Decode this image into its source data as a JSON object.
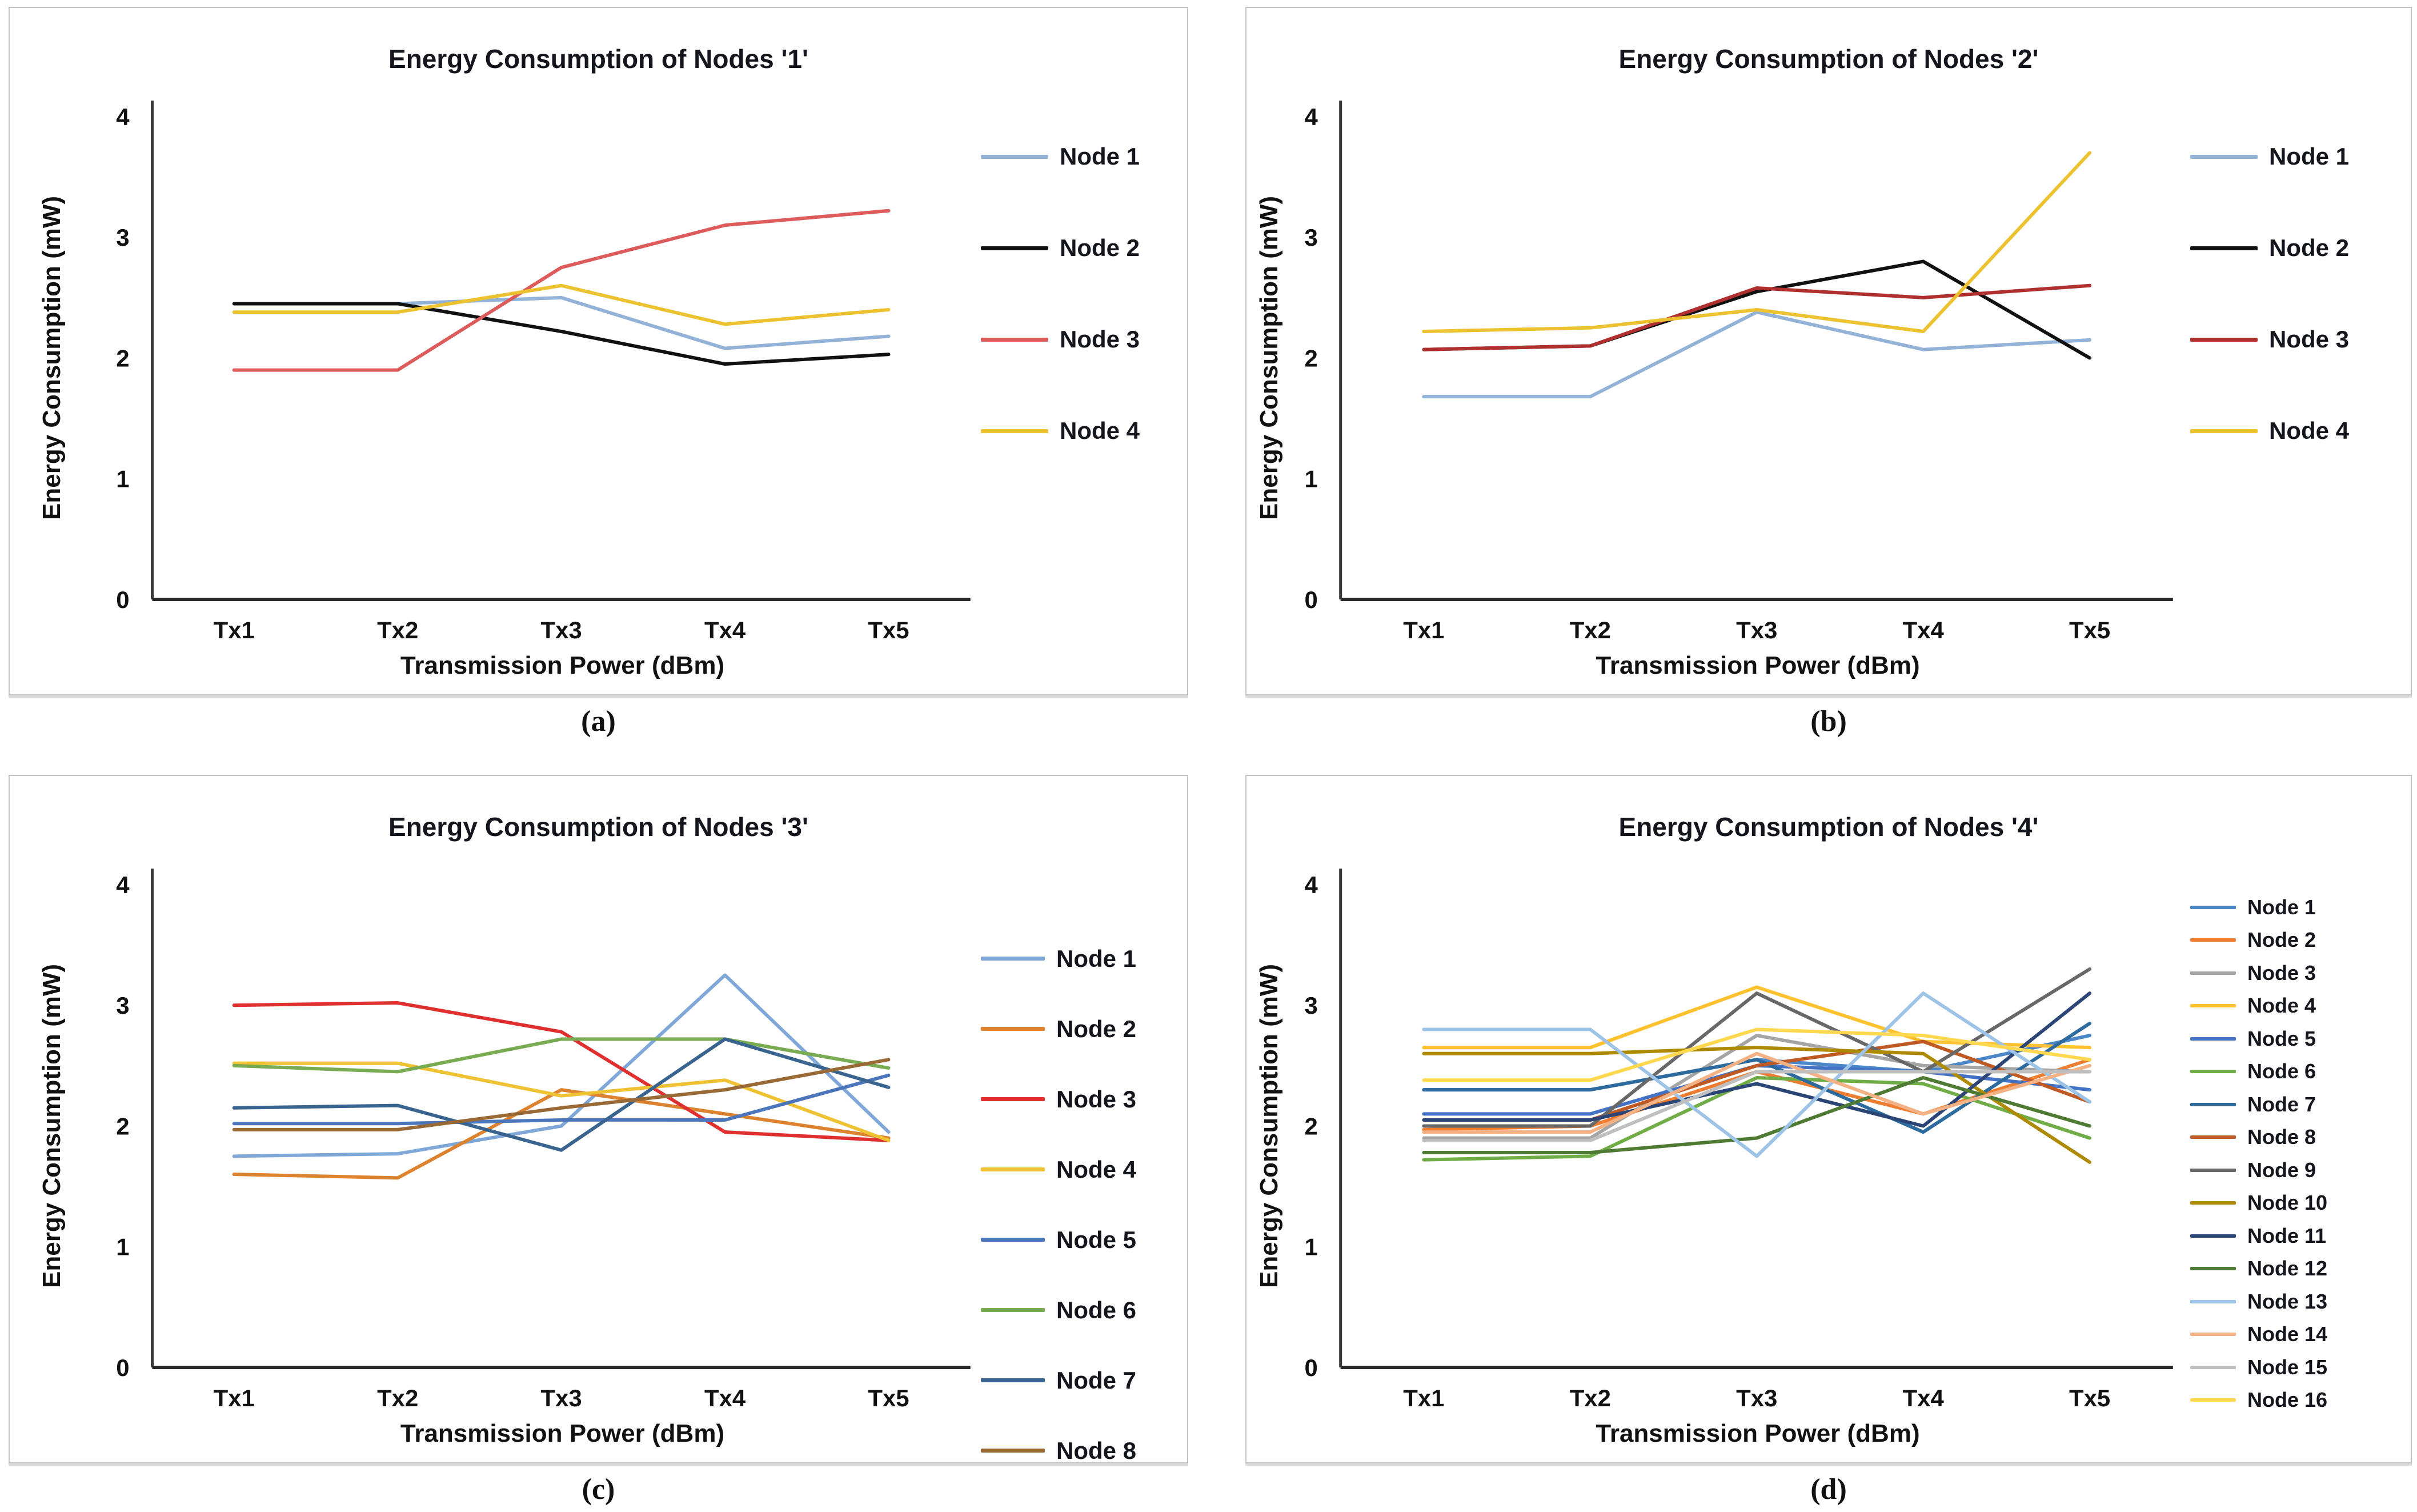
{
  "chart_data": [
    {
      "id": "a",
      "type": "line",
      "caption": "(a)",
      "title": "Energy Consumption of Nodes '1'",
      "xlabel": "Transmission Power (dBm)",
      "ylabel": "Energy Consumption (mW)",
      "x_ticks": [
        "Tx1",
        "Tx2",
        "Tx3",
        "Tx4",
        "Tx5"
      ],
      "y_ticks": [
        0,
        1,
        2,
        3,
        4
      ],
      "ylim": [
        0,
        4
      ],
      "grid": false,
      "legend_position": "right",
      "series": [
        {
          "name": "Node 1",
          "color": "#92B2D7",
          "values": [
            2.45,
            2.45,
            2.5,
            2.08,
            2.18
          ]
        },
        {
          "name": "Node 2",
          "color": "#111111",
          "values": [
            2.45,
            2.45,
            2.22,
            1.95,
            2.03
          ]
        },
        {
          "name": "Node 3",
          "color": "#DD5B5B",
          "values": [
            1.9,
            1.9,
            2.75,
            3.1,
            3.22
          ]
        },
        {
          "name": "Node 4",
          "color": "#ECC231",
          "values": [
            2.38,
            2.38,
            2.6,
            2.28,
            2.4
          ]
        }
      ]
    },
    {
      "id": "b",
      "type": "line",
      "caption": "(b)",
      "title": "Energy Consumption of Nodes '2'",
      "xlabel": "Transmission Power (dBm)",
      "ylabel": "Energy Consumption (mW)",
      "x_ticks": [
        "Tx1",
        "Tx2",
        "Tx3",
        "Tx4",
        "Tx5"
      ],
      "y_ticks": [
        0,
        1,
        2,
        3,
        4
      ],
      "ylim": [
        0,
        4
      ],
      "grid": false,
      "legend_position": "right",
      "series": [
        {
          "name": "Node 1",
          "color": "#92B2D7",
          "values": [
            1.68,
            1.68,
            2.38,
            2.07,
            2.15
          ]
        },
        {
          "name": "Node 2",
          "color": "#111111",
          "values": [
            2.07,
            2.1,
            2.55,
            2.8,
            2.0
          ]
        },
        {
          "name": "Node 3",
          "color": "#B03030",
          "values": [
            2.07,
            2.1,
            2.58,
            2.5,
            2.6
          ]
        },
        {
          "name": "Node 4",
          "color": "#ECC231",
          "values": [
            2.22,
            2.25,
            2.4,
            2.22,
            3.7
          ]
        }
      ]
    },
    {
      "id": "c",
      "type": "line",
      "caption": "(c)",
      "title": "Energy Consumption of Nodes '3'",
      "xlabel": "Transmission Power (dBm)",
      "ylabel": "Energy Consumption (mW)",
      "x_ticks": [
        "Tx1",
        "Tx2",
        "Tx3",
        "Tx4",
        "Tx5"
      ],
      "y_ticks": [
        0,
        1,
        2,
        3,
        4
      ],
      "ylim": [
        0,
        4
      ],
      "grid": false,
      "legend_position": "right",
      "series": [
        {
          "name": "Node 1",
          "color": "#7FA8D9",
          "values": [
            1.75,
            1.77,
            2.0,
            3.25,
            1.95
          ]
        },
        {
          "name": "Node 2",
          "color": "#DD8330",
          "values": [
            1.6,
            1.57,
            2.3,
            2.1,
            1.9
          ]
        },
        {
          "name": "Node 3",
          "color": "#E02F2F",
          "values": [
            3.0,
            3.02,
            2.78,
            1.95,
            1.88
          ]
        },
        {
          "name": "Node 4",
          "color": "#EFC233",
          "values": [
            2.52,
            2.52,
            2.25,
            2.38,
            1.88
          ]
        },
        {
          "name": "Node 5",
          "color": "#4B76BC",
          "values": [
            2.02,
            2.02,
            2.05,
            2.05,
            2.42
          ]
        },
        {
          "name": "Node 6",
          "color": "#79AC52",
          "values": [
            2.5,
            2.45,
            2.72,
            2.72,
            2.48
          ]
        },
        {
          "name": "Node 7",
          "color": "#39648F",
          "values": [
            2.15,
            2.17,
            1.8,
            2.72,
            2.32
          ]
        },
        {
          "name": "Node 8",
          "color": "#9A6A36",
          "values": [
            1.97,
            1.97,
            2.15,
            2.3,
            2.55
          ]
        }
      ]
    },
    {
      "id": "d",
      "type": "line",
      "caption": "(d)",
      "title": "Energy Consumption of Nodes '4'",
      "xlabel": "Transmission Power (dBm)",
      "ylabel": "Energy Consumption (mW)",
      "x_ticks": [
        "Tx1",
        "Tx2",
        "Tx3",
        "Tx4",
        "Tx5"
      ],
      "y_ticks": [
        0,
        1,
        2,
        3,
        4
      ],
      "ylim": [
        0,
        4
      ],
      "grid": false,
      "legend_position": "right",
      "series": [
        {
          "name": "Node 1",
          "color": "#4A86C8",
          "values": [
            2.3,
            2.3,
            2.55,
            2.45,
            2.75
          ]
        },
        {
          "name": "Node 2",
          "color": "#ED7D31",
          "values": [
            1.97,
            2.0,
            2.45,
            2.1,
            2.55
          ]
        },
        {
          "name": "Node 3",
          "color": "#A5A5A5",
          "values": [
            1.9,
            1.9,
            2.75,
            2.5,
            2.45
          ]
        },
        {
          "name": "Node 4",
          "color": "#FFC12E",
          "values": [
            2.65,
            2.65,
            3.15,
            2.7,
            2.65
          ]
        },
        {
          "name": "Node 5",
          "color": "#4472C4",
          "values": [
            2.1,
            2.1,
            2.5,
            2.45,
            2.3
          ]
        },
        {
          "name": "Node 6",
          "color": "#70AD47",
          "values": [
            1.72,
            1.75,
            2.4,
            2.35,
            1.9
          ]
        },
        {
          "name": "Node 7",
          "color": "#2D6B9E",
          "values": [
            2.3,
            2.3,
            2.55,
            1.95,
            2.85
          ]
        },
        {
          "name": "Node 8",
          "color": "#C05A25",
          "values": [
            2.05,
            2.05,
            2.5,
            2.7,
            2.2
          ]
        },
        {
          "name": "Node 9",
          "color": "#686868",
          "values": [
            2.0,
            2.0,
            3.1,
            2.45,
            3.3
          ]
        },
        {
          "name": "Node 10",
          "color": "#AE8A00",
          "values": [
            2.6,
            2.6,
            2.65,
            2.6,
            1.7
          ]
        },
        {
          "name": "Node 11",
          "color": "#2B4577",
          "values": [
            2.05,
            2.05,
            2.35,
            2.0,
            3.1
          ]
        },
        {
          "name": "Node 12",
          "color": "#4F7A33",
          "values": [
            1.78,
            1.78,
            1.9,
            2.4,
            2.0
          ]
        },
        {
          "name": "Node 13",
          "color": "#9DC3E6",
          "values": [
            2.8,
            2.8,
            1.75,
            3.1,
            2.2
          ]
        },
        {
          "name": "Node 14",
          "color": "#F4B183",
          "values": [
            1.95,
            1.95,
            2.6,
            2.1,
            2.5
          ]
        },
        {
          "name": "Node 15",
          "color": "#BFBFBF",
          "values": [
            1.88,
            1.88,
            2.45,
            2.45,
            2.45
          ]
        },
        {
          "name": "Node 16",
          "color": "#FFD84F",
          "values": [
            2.38,
            2.38,
            2.8,
            2.75,
            2.55
          ]
        }
      ]
    }
  ]
}
